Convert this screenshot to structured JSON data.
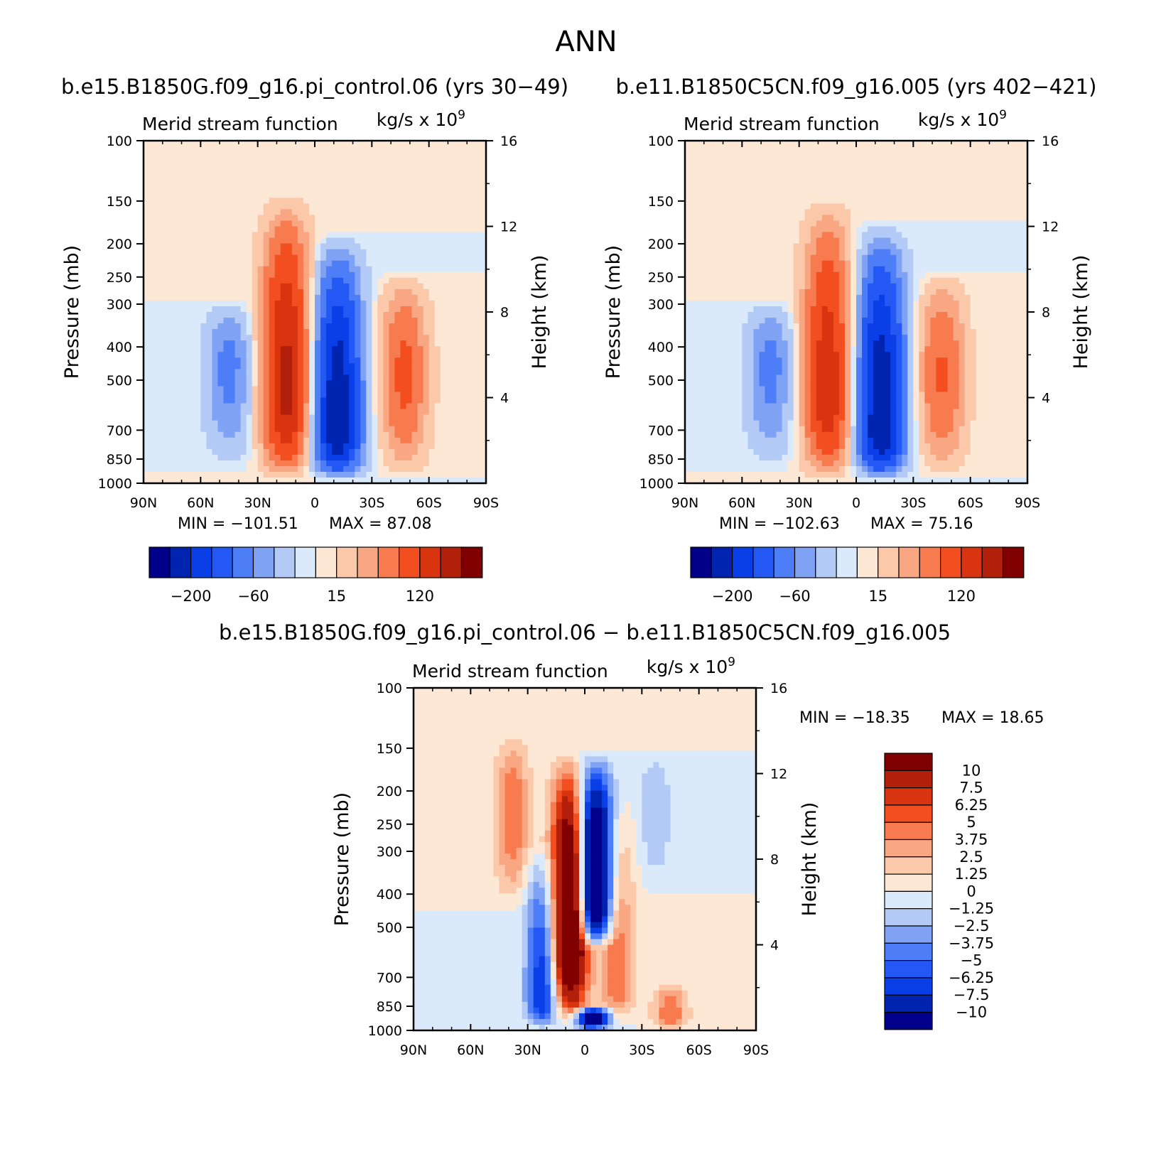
{
  "figure": {
    "title": "ANN",
    "colors": {
      "neg": [
        "#00008b",
        "#0024b0",
        "#0a3ee6",
        "#2358f5",
        "#4d7ef7",
        "#7fa2f5",
        "#b3caf7",
        "#daeafa"
      ],
      "pos": [
        "#fde8d6",
        "#fcc8aa",
        "#f9a682",
        "#f77b4e",
        "#f24e20",
        "#d83410",
        "#b21f0a",
        "#800000"
      ]
    }
  },
  "chart_data": [
    {
      "type": "heatmap",
      "title": "b.e15.B1850G.f09_g16.pi_control.06 (yrs 30−49)",
      "left_label": "Merid stream function",
      "right_label": "kg/s x 10",
      "right_label_exponent": "9",
      "xlabel": "",
      "ylabel": "Pressure (mb)",
      "y2label": "Height (km)",
      "x_ticks": [
        "90N",
        "60N",
        "30N",
        "0",
        "30S",
        "60S",
        "90S"
      ],
      "y_ticks": [
        "100",
        "150",
        "200",
        "250",
        "300",
        "400",
        "500",
        "700",
        "850",
        "1000"
      ],
      "y2_ticks": [
        "16",
        "12",
        "8",
        "4"
      ],
      "ylim": [
        1000,
        100
      ],
      "y_scale": "log",
      "min_text": "MIN = −101.51",
      "max_text": "MAX =   87.08",
      "colorbar_labels": [
        "−200",
        "−60",
        "15",
        "120"
      ],
      "colorbar_orientation": "horizontal",
      "features": [
        {
          "lat": 15,
          "core_p": 550,
          "top_p": 140,
          "bot_p": 990,
          "peak": 87
        },
        {
          "lat": -12,
          "core_p": 700,
          "top_p": 185,
          "bot_p": 985,
          "peak": -101
        },
        {
          "lat": -47,
          "core_p": 480,
          "top_p": 240,
          "bot_p": 975,
          "peak": 45
        },
        {
          "lat": 45,
          "core_p": 450,
          "top_p": 290,
          "bot_p": 920,
          "peak": -30
        }
      ]
    },
    {
      "type": "heatmap",
      "title": "b.e11.B1850C5CN.f09_g16.005 (yrs 402−421)",
      "left_label": "Merid stream function",
      "right_label": "kg/s x 10",
      "right_label_exponent": "9",
      "xlabel": "",
      "ylabel": "Pressure (mb)",
      "y2label": "Height (km)",
      "x_ticks": [
        "90N",
        "60N",
        "30N",
        "0",
        "30S",
        "60S",
        "90S"
      ],
      "y_ticks": [
        "100",
        "150",
        "200",
        "250",
        "300",
        "400",
        "500",
        "700",
        "850",
        "1000"
      ],
      "y2_ticks": [
        "16",
        "12",
        "8",
        "4"
      ],
      "ylim": [
        1000,
        100
      ],
      "y_scale": "log",
      "min_text": "MIN = −102.63",
      "max_text": "MAX =   75.16",
      "colorbar_labels": [
        "−200",
        "−60",
        "15",
        "120"
      ],
      "colorbar_orientation": "horizontal",
      "features": [
        {
          "lat": 15,
          "core_p": 550,
          "top_p": 145,
          "bot_p": 990,
          "peak": 75
        },
        {
          "lat": -13,
          "core_p": 700,
          "top_p": 170,
          "bot_p": 985,
          "peak": -102
        },
        {
          "lat": -45,
          "core_p": 480,
          "top_p": 240,
          "bot_p": 975,
          "peak": 42
        },
        {
          "lat": 45,
          "core_p": 450,
          "top_p": 290,
          "bot_p": 920,
          "peak": -30
        }
      ]
    },
    {
      "type": "heatmap",
      "title": "b.e15.B1850G.f09_g16.pi_control.06 − b.e11.B1850C5CN.f09_g16.005",
      "left_label": "Merid stream function",
      "right_label": "kg/s x 10",
      "right_label_exponent": "9",
      "xlabel": "",
      "ylabel": "Pressure (mb)",
      "y2label": "Height (km)",
      "x_ticks": [
        "90N",
        "60N",
        "30N",
        "0",
        "30S",
        "60S",
        "90S"
      ],
      "y_ticks": [
        "100",
        "150",
        "200",
        "250",
        "300",
        "400",
        "500",
        "700",
        "850",
        "1000"
      ],
      "y2_ticks": [
        "16",
        "12",
        "8",
        "4"
      ],
      "ylim": [
        1000,
        100
      ],
      "y_scale": "log",
      "min_text": "MIN = −18.35",
      "max_text": "MAX =   18.65",
      "colorbar_labels": [
        "10",
        "7.5",
        "6.25",
        "5",
        "3.75",
        "2.5",
        "1.25",
        "0",
        "−1.25",
        "−2.5",
        "−3.75",
        "−5",
        "−6.25",
        "−7.5",
        "−10"
      ],
      "colorbar_orientation": "vertical",
      "features": [
        {
          "lat": 8,
          "core_p": 500,
          "top_p": 150,
          "bot_p": 990,
          "peak": 18
        },
        {
          "lat": -5,
          "core_p": 400,
          "top_p": 150,
          "bot_p": 580,
          "peak": -18
        },
        {
          "lat": -4,
          "core_p": 920,
          "top_p": 850,
          "bot_p": 1000,
          "peak": -14
        },
        {
          "lat": 22,
          "core_p": 800,
          "top_p": 280,
          "bot_p": 1000,
          "peak": -8
        },
        {
          "lat": 38,
          "core_p": 230,
          "top_p": 130,
          "bot_p": 450,
          "peak": 5
        },
        {
          "lat": -17,
          "core_p": 700,
          "top_p": 200,
          "bot_p": 980,
          "peak": 5
        },
        {
          "lat": -45,
          "core_p": 900,
          "top_p": 700,
          "bot_p": 1000,
          "peak": 5
        },
        {
          "lat": -37,
          "core_p": 220,
          "top_p": 150,
          "bot_p": 400,
          "peak": -2.5
        }
      ]
    }
  ]
}
